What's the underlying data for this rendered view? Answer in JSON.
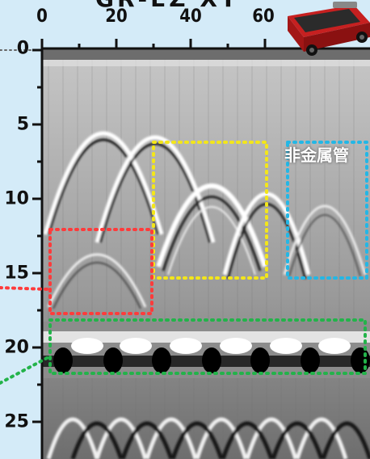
{
  "title": "GR-EZ XT",
  "x_axis": {
    "ticks": [
      "0",
      "20",
      "40",
      "60"
    ]
  },
  "y_axis": {
    "ticks": [
      "0",
      "5",
      "10",
      "15",
      "20",
      "25"
    ]
  },
  "annotation_label": "非金属管",
  "highlight_colors": {
    "red": "#ff3b3b",
    "yellow": "#f3e61a",
    "cyan": "#23b7e6",
    "green": "#23b34a"
  },
  "device_icon": "ground-penetrating-radar-device-icon"
}
